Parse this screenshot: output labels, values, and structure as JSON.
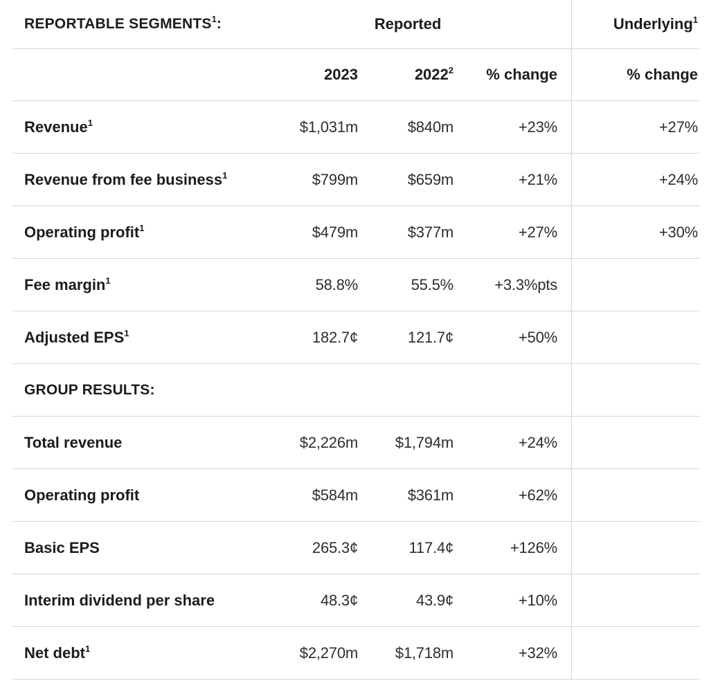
{
  "colors": {
    "background": "#ffffff",
    "text_bold": "#1c1c1a",
    "text_value": "#2d2d2b",
    "line": "#d8d5ce"
  },
  "header": {
    "segments_title": "REPORTABLE SEGMENTS",
    "segments_sup": "1",
    "segments_suffix": ":",
    "reported_label": "Reported",
    "underlying_label": "Underlying",
    "underlying_sup": "1",
    "col_2023": "2023",
    "col_2022": "2022",
    "col_2022_sup": "2",
    "col_change_reported": "% change",
    "col_change_underlying": "% change"
  },
  "section_header": "GROUP RESULTS:",
  "rows": [
    {
      "label": "Revenue",
      "sup": "1",
      "v2023": "$1,031m",
      "v2022": "$840m",
      "change": "+23%",
      "underlying": "+27%"
    },
    {
      "label": "Revenue from fee business",
      "sup": "1",
      "v2023": "$799m",
      "v2022": "$659m",
      "change": "+21%",
      "underlying": "+24%"
    },
    {
      "label": "Operating profit",
      "sup": "1",
      "v2023": "$479m",
      "v2022": "$377m",
      "change": "+27%",
      "underlying": "+30%"
    },
    {
      "label": "Fee margin",
      "sup": "1",
      "v2023": "58.8%",
      "v2022": "55.5%",
      "change": "+3.3%pts",
      "underlying": ""
    },
    {
      "label": "Adjusted EPS",
      "sup": "1",
      "v2023": "182.7¢",
      "v2022": "121.7¢",
      "change": "+50%",
      "underlying": ""
    },
    {
      "label": "Total revenue",
      "sup": "",
      "v2023": "$2,226m",
      "v2022": "$1,794m",
      "change": "+24%",
      "underlying": ""
    },
    {
      "label": "Operating profit",
      "sup": "",
      "v2023": "$584m",
      "v2022": "$361m",
      "change": "+62%",
      "underlying": ""
    },
    {
      "label": "Basic EPS",
      "sup": "",
      "v2023": "265.3¢",
      "v2022": "117.4¢",
      "change": "+126%",
      "underlying": ""
    },
    {
      "label": "Interim dividend per share",
      "sup": "",
      "v2023": "48.3¢",
      "v2022": "43.9¢",
      "change": "+10%",
      "underlying": ""
    },
    {
      "label": "Net debt",
      "sup": "1",
      "v2023": "$2,270m",
      "v2022": "$1,718m",
      "change": "+32%",
      "underlying": ""
    }
  ]
}
